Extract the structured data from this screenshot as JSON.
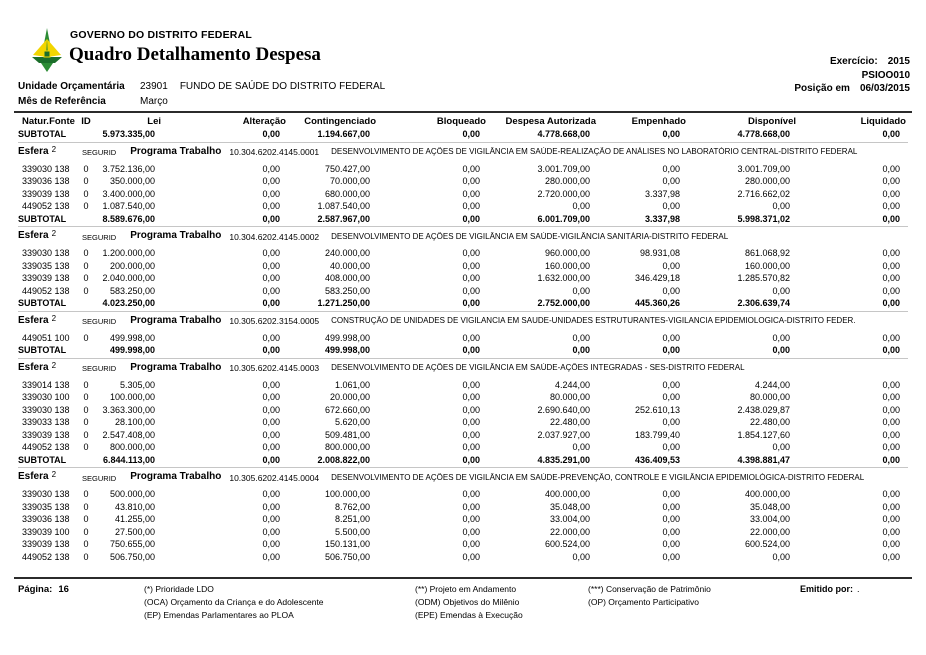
{
  "header": {
    "org": "GOVERNO DO DISTRITO FEDERAL",
    "title": "Quadro Detalhamento Despesa",
    "exercicio_label": "Exercício:",
    "exercicio_value": "2015",
    "report_code": "PSIOO010",
    "posicao_label": "Posição em",
    "posicao_value": "06/03/2015",
    "unidade_label": "Unidade Orçamentária",
    "unidade_code": "23901",
    "unidade_name": "FUNDO DE SAÚDE DO DISTRITO FEDERAL",
    "mes_label": "Mês de Referência",
    "mes_value": "Março"
  },
  "logo_colors": {
    "green": "#2c8c35",
    "dark_green": "#1b6e2a",
    "yellow": "#f2d500"
  },
  "table": {
    "columns": [
      "Natur.",
      "Fonte",
      "ID",
      "Lei",
      "Alteração",
      "Contingenciado",
      "Bloqueado",
      "Despesa Autorizada",
      "Empenhado",
      "Disponível",
      "Liquidado"
    ],
    "carryover_subtotal": {
      "label": "SUBTOTAL",
      "values": [
        "5.973.335,00",
        "0,00",
        "1.194.667,00",
        "0,00",
        "4.778.668,00",
        "0,00",
        "4.778.668,00",
        "0,00"
      ]
    },
    "sections": [
      {
        "esfera_label": "Esfera",
        "esfera_value": "2",
        "seguridade": "SEGURID",
        "programa_label": "Programa Trabalho",
        "programa_code": "10.304.6202.4145.0001",
        "programa_desc": "DESENVOLVIMENTO DE AÇÕES DE VIGILÂNCIA EM SAÚDE-REALIZAÇÃO DE ANÁLISES NO LABORATÓRIO CENTRAL-DISTRITO FEDERAL",
        "rows": [
          {
            "natur": "339030",
            "fonte": "138",
            "id": "0",
            "values": [
              "3.752.136,00",
              "0,00",
              "750.427,00",
              "0,00",
              "3.001.709,00",
              "0,00",
              "3.001.709,00",
              "0,00"
            ]
          },
          {
            "natur": "339036",
            "fonte": "138",
            "id": "0",
            "values": [
              "350.000,00",
              "0,00",
              "70.000,00",
              "0,00",
              "280.000,00",
              "0,00",
              "280.000,00",
              "0,00"
            ]
          },
          {
            "natur": "339039",
            "fonte": "138",
            "id": "0",
            "values": [
              "3.400.000,00",
              "0,00",
              "680.000,00",
              "0,00",
              "2.720.000,00",
              "3.337,98",
              "2.716.662,02",
              "0,00"
            ]
          },
          {
            "natur": "449052",
            "fonte": "138",
            "id": "0",
            "values": [
              "1.087.540,00",
              "0,00",
              "1.087.540,00",
              "0,00",
              "0,00",
              "0,00",
              "0,00",
              "0,00"
            ]
          }
        ],
        "subtotal": {
          "label": "SUBTOTAL",
          "values": [
            "8.589.676,00",
            "0,00",
            "2.587.967,00",
            "0,00",
            "6.001.709,00",
            "3.337,98",
            "5.998.371,02",
            "0,00"
          ]
        }
      },
      {
        "esfera_label": "Esfera",
        "esfera_value": "2",
        "seguridade": "SEGURID",
        "programa_label": "Programa Trabalho",
        "programa_code": "10.304.6202.4145.0002",
        "programa_desc": "DESENVOLVIMENTO DE AÇÕES DE VIGILÂNCIA EM SAÚDE-VIGILÂNCIA SANITÁRIA-DISTRITO FEDERAL",
        "rows": [
          {
            "natur": "339030",
            "fonte": "138",
            "id": "0",
            "values": [
              "1.200.000,00",
              "0,00",
              "240.000,00",
              "0,00",
              "960.000,00",
              "98.931,08",
              "861.068,92",
              "0,00"
            ]
          },
          {
            "natur": "339035",
            "fonte": "138",
            "id": "0",
            "values": [
              "200.000,00",
              "0,00",
              "40.000,00",
              "0,00",
              "160.000,00",
              "0,00",
              "160.000,00",
              "0,00"
            ]
          },
          {
            "natur": "339039",
            "fonte": "138",
            "id": "0",
            "values": [
              "2.040.000,00",
              "0,00",
              "408.000,00",
              "0,00",
              "1.632.000,00",
              "346.429,18",
              "1.285.570,82",
              "0,00"
            ]
          },
          {
            "natur": "449052",
            "fonte": "138",
            "id": "0",
            "values": [
              "583.250,00",
              "0,00",
              "583.250,00",
              "0,00",
              "0,00",
              "0,00",
              "0,00",
              "0,00"
            ]
          }
        ],
        "subtotal": {
          "label": "SUBTOTAL",
          "values": [
            "4.023.250,00",
            "0,00",
            "1.271.250,00",
            "0,00",
            "2.752.000,00",
            "445.360,26",
            "2.306.639,74",
            "0,00"
          ]
        }
      },
      {
        "esfera_label": "Esfera",
        "esfera_value": "2",
        "seguridade": "SEGURID",
        "programa_label": "Programa Trabalho",
        "programa_code": "10.305.6202.3154.0005",
        "programa_desc": "CONSTRUÇÃO DE UNIDADES DE VIGILANCIA EM SAUDE-UNIDADES ESTRUTURANTES-VIGILANCIA EPIDEMIOLOGICA-DISTRITO FEDER.",
        "rows": [
          {
            "natur": "449051",
            "fonte": "100",
            "id": "0",
            "values": [
              "499.998,00",
              "0,00",
              "499.998,00",
              "0,00",
              "0,00",
              "0,00",
              "0,00",
              "0,00"
            ]
          }
        ],
        "subtotal": {
          "label": "SUBTOTAL",
          "values": [
            "499.998,00",
            "0,00",
            "499.998,00",
            "0,00",
            "0,00",
            "0,00",
            "0,00",
            "0,00"
          ]
        }
      },
      {
        "esfera_label": "Esfera",
        "esfera_value": "2",
        "seguridade": "SEGURID",
        "programa_label": "Programa Trabalho",
        "programa_code": "10.305.6202.4145.0003",
        "programa_desc": "DESENVOLVIMENTO DE AÇÕES DE VIGILÂNCIA EM SAÚDE-AÇÕES INTEGRADAS - SES-DISTRITO FEDERAL",
        "rows": [
          {
            "natur": "339014",
            "fonte": "138",
            "id": "0",
            "values": [
              "5.305,00",
              "0,00",
              "1.061,00",
              "0,00",
              "4.244,00",
              "0,00",
              "4.244,00",
              "0,00"
            ]
          },
          {
            "natur": "339030",
            "fonte": "100",
            "id": "0",
            "values": [
              "100.000,00",
              "0,00",
              "20.000,00",
              "0,00",
              "80.000,00",
              "0,00",
              "80.000,00",
              "0,00"
            ]
          },
          {
            "natur": "339030",
            "fonte": "138",
            "id": "0",
            "values": [
              "3.363.300,00",
              "0,00",
              "672.660,00",
              "0,00",
              "2.690.640,00",
              "252.610,13",
              "2.438.029,87",
              "0,00"
            ]
          },
          {
            "natur": "339033",
            "fonte": "138",
            "id": "0",
            "values": [
              "28.100,00",
              "0,00",
              "5.620,00",
              "0,00",
              "22.480,00",
              "0,00",
              "22.480,00",
              "0,00"
            ]
          },
          {
            "natur": "339039",
            "fonte": "138",
            "id": "0",
            "values": [
              "2.547.408,00",
              "0,00",
              "509.481,00",
              "0,00",
              "2.037.927,00",
              "183.799,40",
              "1.854.127,60",
              "0,00"
            ]
          },
          {
            "natur": "449052",
            "fonte": "138",
            "id": "0",
            "values": [
              "800.000,00",
              "0,00",
              "800.000,00",
              "0,00",
              "0,00",
              "0,00",
              "0,00",
              "0,00"
            ]
          }
        ],
        "subtotal": {
          "label": "SUBTOTAL",
          "values": [
            "6.844.113,00",
            "0,00",
            "2.008.822,00",
            "0,00",
            "4.835.291,00",
            "436.409,53",
            "4.398.881,47",
            "0,00"
          ]
        }
      },
      {
        "esfera_label": "Esfera",
        "esfera_value": "2",
        "seguridade": "SEGURID",
        "programa_label": "Programa Trabalho",
        "programa_code": "10.305.6202.4145.0004",
        "programa_desc": "DESENVOLVIMENTO DE AÇÕES DE VIGILÂNCIA EM SAÚDE-PREVENÇÃO, CONTROLE E VIGILÂNCIA EPIDEMIOLÓGICA-DISTRITO FEDERAL",
        "rows": [
          {
            "natur": "339030",
            "fonte": "138",
            "id": "0",
            "values": [
              "500.000,00",
              "0,00",
              "100.000,00",
              "0,00",
              "400.000,00",
              "0,00",
              "400.000,00",
              "0,00"
            ]
          },
          {
            "natur": "339035",
            "fonte": "138",
            "id": "0",
            "values": [
              "43.810,00",
              "0,00",
              "8.762,00",
              "0,00",
              "35.048,00",
              "0,00",
              "35.048,00",
              "0,00"
            ]
          },
          {
            "natur": "339036",
            "fonte": "138",
            "id": "0",
            "values": [
              "41.255,00",
              "0,00",
              "8.251,00",
              "0,00",
              "33.004,00",
              "0,00",
              "33.004,00",
              "0,00"
            ]
          },
          {
            "natur": "339039",
            "fonte": "100",
            "id": "0",
            "values": [
              "27.500,00",
              "0,00",
              "5.500,00",
              "0,00",
              "22.000,00",
              "0,00",
              "22.000,00",
              "0,00"
            ]
          },
          {
            "natur": "339039",
            "fonte": "138",
            "id": "0",
            "values": [
              "750.655,00",
              "0,00",
              "150.131,00",
              "0,00",
              "600.524,00",
              "0,00",
              "600.524,00",
              "0,00"
            ]
          },
          {
            "natur": "449052",
            "fonte": "138",
            "id": "0",
            "values": [
              "506.750,00",
              "0,00",
              "506.750,00",
              "0,00",
              "0,00",
              "0,00",
              "0,00",
              "0,00"
            ]
          }
        ],
        "subtotal": null
      }
    ]
  },
  "footer": {
    "pagina_label": "Página:",
    "pagina_value": "16",
    "legend_col1": [
      "(*)  Prioridade LDO",
      "(OCA)  Orçamento da Criança e do Adolescente",
      "(EP)  Emendas Parlamentares ao PLOA"
    ],
    "legend_col2": [
      "(**)  Projeto em Andamento",
      "(ODM) Objetivos do Milênio",
      "(EPE) Emendas à Execução"
    ],
    "legend_col3": [
      "(***)  Conservação de Patrimônio",
      "(OP) Orçamento Participativo"
    ],
    "emitido_label": "Emitido por:",
    "emitido_value": "."
  }
}
